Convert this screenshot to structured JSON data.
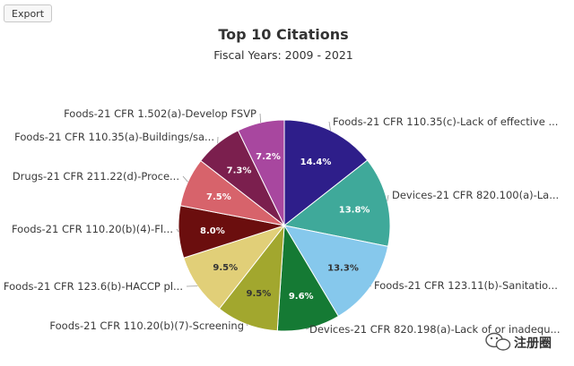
{
  "toolbar": {
    "export_label": "Export"
  },
  "watermark": {
    "text": "注册圈"
  },
  "chart_data": {
    "type": "pie",
    "title": "Top 10 Citations",
    "subtitle": "Fiscal Years: 2009 - 2021",
    "slices": [
      {
        "label": "Foods-21 CFR 110.35(c)-Lack of effective ...",
        "value": 14.4,
        "display": "14.4%",
        "color": "#2e1e8a"
      },
      {
        "label": "Devices-21 CFR 820.100(a)-La...",
        "value": 13.8,
        "display": "13.8%",
        "color": "#3fa99a"
      },
      {
        "label": "Foods-21 CFR 123.11(b)-Sanitatio...",
        "value": 13.3,
        "display": "13.3%",
        "color": "#86c8ec"
      },
      {
        "label": "Devices-21 CFR 820.198(a)-Lack of or inadequ...",
        "value": 9.6,
        "display": "9.6%",
        "color": "#157a34"
      },
      {
        "label": "Foods-21 CFR 110.20(b)(7)-Screening",
        "value": 9.5,
        "display": "9.5%",
        "color": "#a2a72e"
      },
      {
        "label": "Foods-21 CFR 123.6(b)-HACCP pl...",
        "value": 9.5,
        "display": "9.5%",
        "color": "#e1cf78"
      },
      {
        "label": "Foods-21 CFR 110.20(b)(4)-Fl...",
        "value": 8.0,
        "display": "8.0%",
        "color": "#6b0e0e"
      },
      {
        "label": "Drugs-21 CFR 211.22(d)-Proce...",
        "value": 7.5,
        "display": "7.5%",
        "color": "#d7636b"
      },
      {
        "label": "Foods-21 CFR 110.35(a)-Buildings/sa...",
        "value": 7.3,
        "display": "7.3%",
        "color": "#7b1f4e"
      },
      {
        "label": "Foods-21 CFR 1.502(a)-Develop FSVP",
        "value": 7.2,
        "display": "7.2%",
        "color": "#a8479f"
      }
    ]
  }
}
